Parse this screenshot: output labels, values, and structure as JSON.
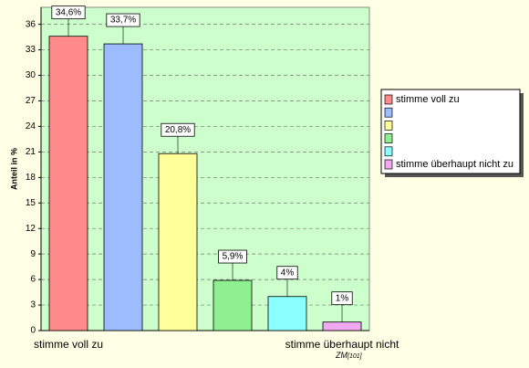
{
  "chart_data": {
    "type": "bar",
    "y_label": "Anteil in %",
    "categories": [
      "stimme voll zu",
      null,
      null,
      null,
      null,
      "stimme überhaupt nicht"
    ],
    "values": [
      34.6,
      33.7,
      20.8,
      5.9,
      4,
      1
    ],
    "value_labels": [
      "34,6%",
      "33,7%",
      "20,8%",
      "5,9%",
      "4%",
      "1%"
    ],
    "colors": [
      "#ff8a8a",
      "#9dbcff",
      "#ffff99",
      "#8ef08e",
      "#8affff",
      "#f0a8f0"
    ],
    "legend": [
      "stimme voll zu",
      null,
      null,
      null,
      null,
      "stimme überhaupt nicht zu"
    ],
    "legend_position": "right",
    "ylim": [
      0,
      38
    ],
    "yticks": [
      0,
      3,
      6,
      9,
      12,
      15,
      18,
      21,
      24,
      27,
      30,
      33,
      36
    ],
    "grid": true,
    "note": "ZM",
    "note_sub": "[101]"
  }
}
